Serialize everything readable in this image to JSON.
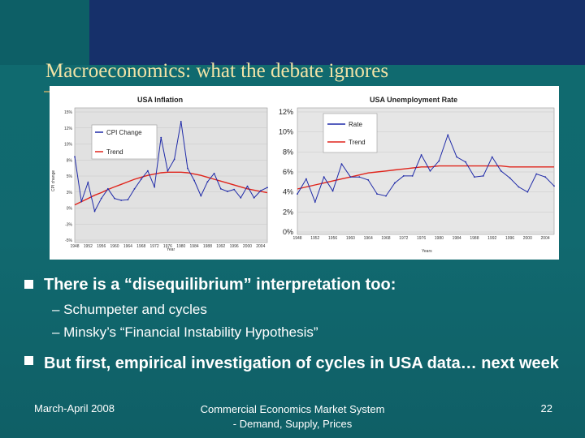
{
  "slide": {
    "title": "Macroeconomics: what the debate ignores",
    "bullets": [
      {
        "text": "There is a “disequilibrium” interpretation too:"
      },
      {
        "text": "But first, empirical investigation of cycles in USA data… next week"
      }
    ],
    "subbullets": [
      "– Schumpeter and cycles",
      "– Minsky’s “Financial Instability Hypothesis”"
    ],
    "footer": {
      "left": "March-April 2008",
      "center": "Commercial Economics Market System - Demand, Supply, Prices",
      "right": "22"
    }
  },
  "colors": {
    "series": "#1f2aa8",
    "trend": "#e0241b",
    "title": "#f2e3a6"
  },
  "chart_data": [
    {
      "type": "line",
      "title": "USA Inflation",
      "ylabel": "CPI change",
      "xlabel": "Year",
      "yticks": [
        "15%",
        "12%",
        "10%",
        "8%",
        "5%",
        "3%",
        "0%",
        "-3%",
        "-5%"
      ],
      "ylim": [
        -5,
        15
      ],
      "legend": [
        "CPI Change",
        "Trend"
      ],
      "legend_position": "top-left",
      "x": [
        1948,
        1950,
        1952,
        1954,
        1956,
        1958,
        1960,
        1962,
        1964,
        1966,
        1968,
        1970,
        1972,
        1974,
        1976,
        1978,
        1980,
        1982,
        1984,
        1986,
        1988,
        1990,
        1992,
        1994,
        1996,
        1998,
        2000,
        2002,
        2004,
        2006
      ],
      "series": [
        {
          "name": "CPI Change",
          "values": [
            8,
            1,
            4,
            -0.5,
            1.5,
            3,
            1.5,
            1.2,
            1.3,
            3,
            4.5,
            5.8,
            3.3,
            11,
            5.8,
            7.6,
            13.5,
            6.2,
            4.3,
            1.9,
            4.1,
            5.4,
            3,
            2.6,
            2.9,
            1.6,
            3.4,
            1.6,
            2.7,
            3.2
          ]
        },
        {
          "name": "Trend",
          "values": [
            0.5,
            1,
            1.5,
            2,
            2.4,
            2.9,
            3.3,
            3.7,
            4.1,
            4.5,
            4.8,
            5.1,
            5.3,
            5.5,
            5.6,
            5.6,
            5.6,
            5.5,
            5.3,
            5.1,
            4.8,
            4.5,
            4.2,
            3.9,
            3.6,
            3.3,
            3,
            2.8,
            2.6,
            2.4
          ]
        }
      ]
    },
    {
      "type": "line",
      "title": "USA Unemployment Rate",
      "xlabel": "Years",
      "yticks": [
        "12%",
        "10%",
        "8%",
        "6%",
        "4%",
        "2%",
        "0%"
      ],
      "ylim": [
        0,
        12
      ],
      "legend": [
        "Rate",
        "Trend"
      ],
      "legend_position": "top-left",
      "x": [
        1948,
        1950,
        1952,
        1954,
        1956,
        1958,
        1960,
        1962,
        1964,
        1966,
        1968,
        1970,
        1972,
        1974,
        1976,
        1978,
        1980,
        1982,
        1984,
        1986,
        1988,
        1990,
        1992,
        1994,
        1996,
        1998,
        2000,
        2002,
        2004,
        2006
      ],
      "series": [
        {
          "name": "Rate",
          "values": [
            3.8,
            5.3,
            3,
            5.5,
            4.1,
            6.8,
            5.5,
            5.5,
            5.2,
            3.8,
            3.6,
            4.9,
            5.6,
            5.6,
            7.7,
            6.1,
            7.1,
            9.7,
            7.5,
            7,
            5.5,
            5.6,
            7.5,
            6.1,
            5.4,
            4.5,
            4,
            5.8,
            5.5,
            4.6
          ]
        },
        {
          "name": "Trend",
          "values": [
            4.3,
            4.5,
            4.7,
            4.9,
            5.1,
            5.3,
            5.5,
            5.7,
            5.9,
            6,
            6.1,
            6.2,
            6.3,
            6.4,
            6.5,
            6.5,
            6.6,
            6.6,
            6.6,
            6.6,
            6.6,
            6.6,
            6.6,
            6.6,
            6.5,
            6.5,
            6.5,
            6.5,
            6.5,
            6.5
          ]
        }
      ]
    }
  ]
}
